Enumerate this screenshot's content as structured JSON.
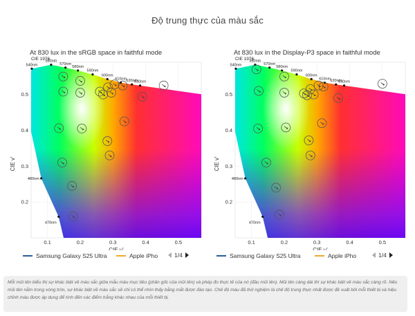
{
  "page_title": "Độ trung thực của màu sắc",
  "caption": "Mỗi mũi tên biểu thị sự khác biệt về màu sắc giữa mẫu màu mục tiêu (phần gốc của mũi tên) và phép đo thực tế của nó (đầu mũi tên). Mũi tên càng dài thì sự khác biệt về màu sắc càng rõ. Nếu mũi tên nằm trong vòng tròn, sự khác biệt về màu sắc sẽ chỉ có thể nhìn thấy bằng mắt được đào tạo. Chế độ màu đã thử nghiệm là chế độ trung thực nhất được đề xuất bởi mỗi thiết bị và hiệu chỉnh màu được áp dụng để tính đến các điểm trắng khác nhau của mỗi thiết bị.",
  "colors": {
    "samsung": "#2a5c9a",
    "apple": "#f0a830",
    "target_circle": "#555555"
  },
  "icons": {
    "prev": "triangle-left",
    "next": "triangle-right"
  },
  "panels": [
    {
      "title": "At 830 lux in the sRGB space in faithful mode",
      "legend": [
        "Samsung Galaxy S25 Ultra",
        "Apple iPho"
      ],
      "pager": "1/4"
    },
    {
      "title": "At 830 lux in the Display-P3 space in faithful mode",
      "legend": [
        "Samsung Galaxy S25 Ultra",
        "Apple iPho"
      ],
      "pager": "1/4"
    }
  ],
  "chart_data": [
    {
      "type": "scatter",
      "title": "At 830 lux in the sRGB space in faithful mode",
      "xlabel": "CIE u'",
      "ylabel": "CIE v'",
      "corner_label": "CIE 1976",
      "xlim": [
        0.05,
        0.57
      ],
      "ylim": [
        0.1,
        0.59
      ],
      "xticks": [
        0.1,
        0.2,
        0.3,
        0.4,
        0.5
      ],
      "yticks": [
        0.2,
        0.3,
        0.4,
        0.5
      ],
      "grid": true,
      "spectral_locus": [
        {
          "nm": "470nm",
          "u": 0.134,
          "v": 0.159
        },
        {
          "nm": "480nm",
          "u": 0.081,
          "v": 0.266
        },
        {
          "nm": "540nm",
          "u": 0.052,
          "v": 0.572
        },
        {
          "nm": "560nm",
          "u": 0.111,
          "v": 0.583
        },
        {
          "nm": "570nm",
          "u": 0.155,
          "v": 0.575
        },
        {
          "nm": "580nm",
          "u": 0.193,
          "v": 0.567
        },
        {
          "nm": "590nm",
          "u": 0.238,
          "v": 0.556
        },
        {
          "nm": "600nm",
          "u": 0.283,
          "v": 0.543
        },
        {
          "nm": "610nm",
          "u": 0.324,
          "v": 0.533
        },
        {
          "nm": "620nm",
          "u": 0.358,
          "v": 0.528
        },
        {
          "nm": "630nm",
          "u": 0.383,
          "v": 0.525
        }
      ],
      "targets": [
        {
          "u": 0.148,
          "v": 0.55
        },
        {
          "u": 0.2,
          "v": 0.538
        },
        {
          "u": 0.148,
          "v": 0.508
        },
        {
          "u": 0.2,
          "v": 0.505
        },
        {
          "u": 0.26,
          "v": 0.508
        },
        {
          "u": 0.285,
          "v": 0.52
        },
        {
          "u": 0.305,
          "v": 0.528
        },
        {
          "u": 0.33,
          "v": 0.525
        },
        {
          "u": 0.27,
          "v": 0.5
        },
        {
          "u": 0.295,
          "v": 0.505
        },
        {
          "u": 0.39,
          "v": 0.494
        },
        {
          "u": 0.455,
          "v": 0.525
        },
        {
          "u": 0.335,
          "v": 0.425
        },
        {
          "u": 0.135,
          "v": 0.406
        },
        {
          "u": 0.205,
          "v": 0.405
        },
        {
          "u": 0.283,
          "v": 0.37
        },
        {
          "u": 0.145,
          "v": 0.31
        },
        {
          "u": 0.29,
          "v": 0.33
        },
        {
          "u": 0.175,
          "v": 0.245
        },
        {
          "u": 0.178,
          "v": 0.16
        }
      ]
    },
    {
      "type": "scatter",
      "title": "At 830 lux in the Display-P3 space in faithful mode",
      "xlabel": "CIE u'",
      "ylabel": "CIE v'",
      "corner_label": "CIE 1976",
      "xlim": [
        0.05,
        0.57
      ],
      "ylim": [
        0.1,
        0.59
      ],
      "xticks": [
        0.1,
        0.2,
        0.3,
        0.4,
        0.5
      ],
      "yticks": [
        0.2,
        0.3,
        0.4,
        0.5
      ],
      "grid": true,
      "spectral_locus": [
        {
          "nm": "470nm",
          "u": 0.134,
          "v": 0.159
        },
        {
          "nm": "480nm",
          "u": 0.081,
          "v": 0.266
        },
        {
          "nm": "540nm",
          "u": 0.052,
          "v": 0.572
        },
        {
          "nm": "560nm",
          "u": 0.111,
          "v": 0.583
        },
        {
          "nm": "570nm",
          "u": 0.155,
          "v": 0.575
        },
        {
          "nm": "580nm",
          "u": 0.193,
          "v": 0.567
        },
        {
          "nm": "590nm",
          "u": 0.238,
          "v": 0.556
        },
        {
          "nm": "600nm",
          "u": 0.283,
          "v": 0.543
        },
        {
          "nm": "610nm",
          "u": 0.324,
          "v": 0.533
        },
        {
          "nm": "620nm",
          "u": 0.358,
          "v": 0.528
        },
        {
          "nm": "630nm",
          "u": 0.383,
          "v": 0.525
        }
      ],
      "targets": [
        {
          "u": 0.115,
          "v": 0.57
        },
        {
          "u": 0.2,
          "v": 0.55
        },
        {
          "u": 0.122,
          "v": 0.51
        },
        {
          "u": 0.2,
          "v": 0.505
        },
        {
          "u": 0.26,
          "v": 0.503
        },
        {
          "u": 0.28,
          "v": 0.515
        },
        {
          "u": 0.305,
          "v": 0.525
        },
        {
          "u": 0.32,
          "v": 0.522
        },
        {
          "u": 0.27,
          "v": 0.498
        },
        {
          "u": 0.29,
          "v": 0.5
        },
        {
          "u": 0.365,
          "v": 0.49
        },
        {
          "u": 0.5,
          "v": 0.53
        },
        {
          "u": 0.315,
          "v": 0.42
        },
        {
          "u": 0.12,
          "v": 0.405
        },
        {
          "u": 0.205,
          "v": 0.408
        },
        {
          "u": 0.275,
          "v": 0.372
        },
        {
          "u": 0.145,
          "v": 0.31
        },
        {
          "u": 0.28,
          "v": 0.33
        },
        {
          "u": 0.175,
          "v": 0.24
        },
        {
          "u": 0.185,
          "v": 0.165
        }
      ]
    }
  ]
}
